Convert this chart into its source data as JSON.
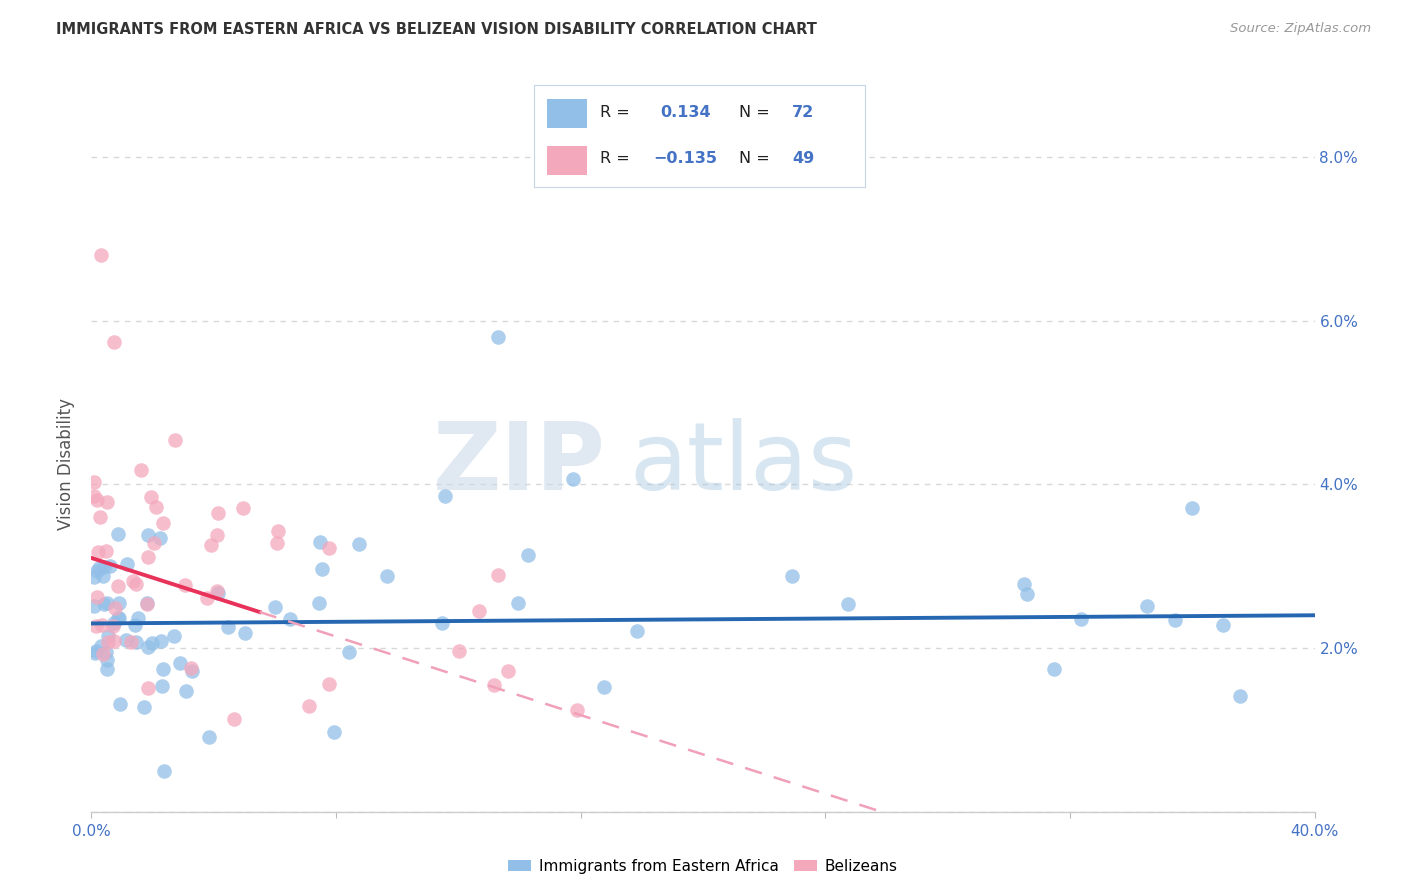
{
  "title": "IMMIGRANTS FROM EASTERN AFRICA VS BELIZEAN VISION DISABILITY CORRELATION CHART",
  "source": "Source: ZipAtlas.com",
  "ylabel": "Vision Disability",
  "xlim": [
    0.0,
    0.4
  ],
  "ylim": [
    0.0,
    0.085
  ],
  "xtick_vals": [
    0.0,
    0.08,
    0.16,
    0.24,
    0.32,
    0.4
  ],
  "ytick_vals": [
    0.0,
    0.02,
    0.04,
    0.06,
    0.08
  ],
  "ytick_labels": [
    "",
    "2.0%",
    "4.0%",
    "6.0%",
    "8.0%"
  ],
  "series_blue": {
    "label": "Immigrants from Eastern Africa",
    "color": "#92bfe8",
    "R": 0.134,
    "N": 72,
    "trend_color": "#2567b0",
    "trend_intercept": 0.023,
    "trend_slope": 0.0025
  },
  "series_pink": {
    "label": "Belizeans",
    "color": "#f4a8bc",
    "R": -0.135,
    "N": 49,
    "trend_color": "#e8325a",
    "trend_dash_color": "#f0a0b8",
    "trend_intercept": 0.031,
    "trend_slope": -0.12
  },
  "watermark_zip": "ZIP",
  "watermark_atlas": "atlas",
  "background_color": "#ffffff",
  "grid_color": "#d8d8d8",
  "tick_color": "#4472c4",
  "legend_box_color": "#e8f0f8"
}
